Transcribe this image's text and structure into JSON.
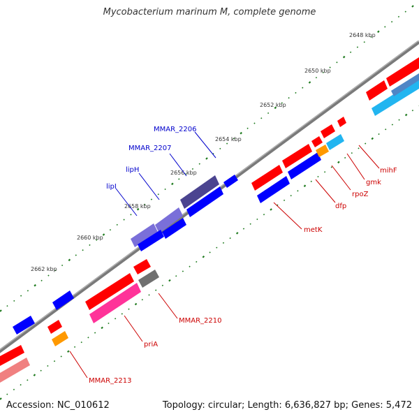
{
  "title": "Mycobacterium marinum M, complete genome",
  "accession": "Accession: NC_010612",
  "topology": "Topology: circular; Length: 6,636,827 bp; Genes: 5,472",
  "ticks": [
    {
      "label": "2648 kbp"
    },
    {
      "label": "2650 kbp"
    },
    {
      "label": "2652 kbp"
    },
    {
      "label": "2654 kbp"
    },
    {
      "label": "2656 kbp"
    },
    {
      "label": "2658 kbp"
    },
    {
      "label": "2660 kbp"
    },
    {
      "label": "2662 kbp"
    }
  ],
  "gene_labels": [
    {
      "label": "MMAR_2206",
      "color": "#0000cc"
    },
    {
      "label": "MMAR_2207",
      "color": "#0000cc"
    },
    {
      "label": "lipH",
      "color": "#0000cc"
    },
    {
      "label": "lipI",
      "color": "#0000cc"
    },
    {
      "label": "metK",
      "color": "#cc0000"
    },
    {
      "label": "dfp",
      "color": "#cc0000"
    },
    {
      "label": "rpoZ",
      "color": "#cc0000"
    },
    {
      "label": "gmk",
      "color": "#cc0000"
    },
    {
      "label": "mihF",
      "color": "#cc0000"
    },
    {
      "label": "MMAR_2210",
      "color": "#cc0000"
    },
    {
      "label": "priA",
      "color": "#cc0000"
    },
    {
      "label": "MMAR_2213",
      "color": "#cc0000"
    }
  ],
  "colors": {
    "backbone": "#7a7a7a",
    "tick_dots": "#1e7a1e",
    "forward_gene": "#ff0000",
    "reverse_gene": "#0000ff",
    "lipase_gene": "#7a6fd9",
    "dark_gene": "#4b4490",
    "cyan_gene": "#22b5f0",
    "orange_gene": "#ff9900",
    "gray_gene": "#707070",
    "pink_gene": "#ff3399",
    "salmon_gene": "#f08080"
  }
}
